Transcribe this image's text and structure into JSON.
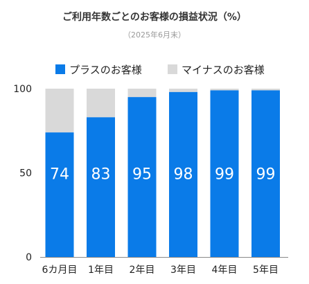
{
  "title": "ご利用年数ごとのお客様の損益状況（%）",
  "subtitle": "（2025年6月末）",
  "colors": {
    "plus": "#0a7be8",
    "minus": "#d9d9d9",
    "axis": "#888888",
    "text": "#222222"
  },
  "chart_data": {
    "type": "bar",
    "stacked": true,
    "title": "ご利用年数ごとのお客様の損益状況（%）",
    "subtitle": "（2025年6月末）",
    "categories": [
      "6カ月目",
      "1年目",
      "2年目",
      "3年目",
      "4年目",
      "5年目"
    ],
    "series": [
      {
        "name": "プラスのお客様",
        "values": [
          74,
          83,
          95,
          98,
          99,
          99
        ]
      },
      {
        "name": "マイナスのお客様",
        "values": [
          26,
          17,
          5,
          2,
          1,
          1
        ]
      }
    ],
    "ylim": [
      0,
      100
    ],
    "yticks": [
      0,
      50,
      100
    ],
    "legend": "top",
    "grid": false
  }
}
